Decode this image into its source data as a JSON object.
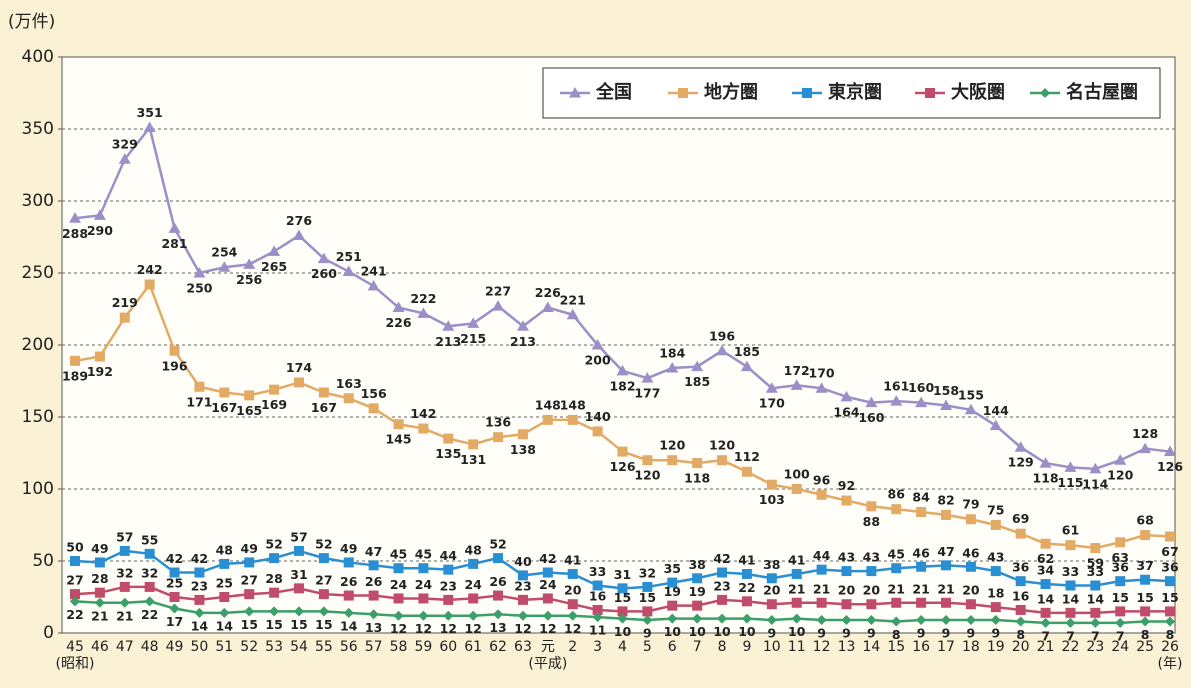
{
  "chart_data": {
    "type": "line",
    "y_axis_label": "(万件)",
    "categories": [
      "45",
      "46",
      "47",
      "48",
      "49",
      "50",
      "51",
      "52",
      "53",
      "54",
      "55",
      "56",
      "57",
      "58",
      "59",
      "60",
      "61",
      "62",
      "63",
      "元",
      "2",
      "3",
      "4",
      "5",
      "6",
      "7",
      "8",
      "9",
      "10",
      "11",
      "12",
      "13",
      "14",
      "15",
      "16",
      "17",
      "18",
      "19",
      "20",
      "21",
      "22",
      "23",
      "24",
      "25",
      "26"
    ],
    "x_sublabels": [
      "(昭和)",
      null,
      null,
      null,
      null,
      null,
      null,
      null,
      null,
      null,
      null,
      null,
      null,
      null,
      null,
      null,
      null,
      null,
      null,
      "(平成)",
      null,
      null,
      null,
      null,
      null,
      null,
      null,
      null,
      null,
      null,
      null,
      null,
      null,
      null,
      null,
      null,
      null,
      null,
      null,
      null,
      null,
      null,
      null,
      null,
      "(年)"
    ],
    "series": [
      {
        "name": "全国",
        "color": "#9b8fc8",
        "marker": "triangle",
        "values": [
          288,
          290,
          329,
          351,
          281,
          250,
          254,
          256,
          265,
          276,
          260,
          251,
          241,
          226,
          222,
          213,
          215,
          227,
          213,
          226,
          221,
          200,
          182,
          177,
          184,
          185,
          196,
          185,
          170,
          172,
          170,
          164,
          160,
          161,
          160,
          158,
          155,
          144,
          129,
          118,
          115,
          114,
          120,
          128,
          126
        ]
      },
      {
        "name": "地方圏",
        "color": "#e2aa64",
        "marker": "square",
        "values": [
          189,
          192,
          219,
          242,
          196,
          171,
          167,
          165,
          169,
          174,
          167,
          163,
          156,
          145,
          142,
          135,
          131,
          136,
          138,
          148,
          148,
          140,
          126,
          120,
          120,
          118,
          120,
          112,
          103,
          100,
          96,
          92,
          88,
          86,
          84,
          82,
          79,
          75,
          69,
          62,
          61,
          59,
          63,
          68,
          67
        ]
      },
      {
        "name": "東京圏",
        "color": "#2a8fd2",
        "marker": "square",
        "values": [
          50,
          49,
          57,
          55,
          42,
          42,
          48,
          49,
          52,
          57,
          52,
          49,
          47,
          45,
          45,
          44,
          48,
          52,
          40,
          42,
          41,
          33,
          31,
          32,
          35,
          38,
          42,
          41,
          38,
          41,
          44,
          43,
          43,
          45,
          46,
          47,
          46,
          43,
          36,
          34,
          33,
          33,
          36,
          37,
          36
        ]
      },
      {
        "name": "大阪圏",
        "color": "#c14b6b",
        "marker": "square",
        "values": [
          27,
          28,
          32,
          32,
          25,
          23,
          25,
          27,
          28,
          31,
          27,
          26,
          26,
          24,
          24,
          23,
          24,
          26,
          23,
          24,
          20,
          16,
          15,
          15,
          19,
          19,
          23,
          22,
          20,
          21,
          21,
          20,
          20,
          21,
          21,
          21,
          20,
          18,
          16,
          14,
          14,
          14,
          15,
          15,
          15
        ]
      },
      {
        "name": "名古屋圏",
        "color": "#3a9f68",
        "marker": "diamond",
        "values": [
          22,
          21,
          21,
          22,
          17,
          14,
          14,
          15,
          15,
          15,
          15,
          14,
          13,
          12,
          12,
          12,
          12,
          13,
          12,
          12,
          12,
          11,
          10,
          9,
          10,
          10,
          10,
          10,
          9,
          10,
          9,
          9,
          9,
          8,
          9,
          9,
          9,
          9,
          8,
          7,
          7,
          7,
          7,
          8,
          8
        ]
      }
    ],
    "ylim": [
      0,
      400
    ],
    "yticks": [
      0,
      50,
      100,
      150,
      200,
      250,
      300,
      350,
      400
    ],
    "grid": true,
    "legend": "top-right"
  }
}
